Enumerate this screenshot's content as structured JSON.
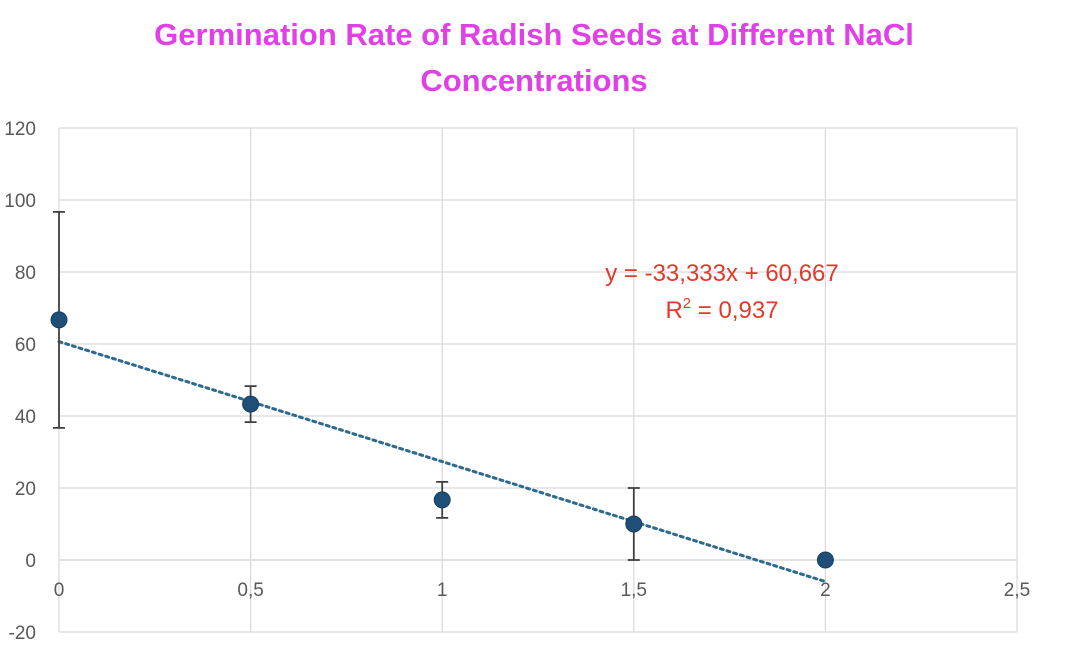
{
  "chart_data": {
    "type": "scatter",
    "title_lines": [
      "Germination Rate of Radish Seeds at Different NaCl",
      "Concentrations"
    ],
    "xlim": [
      0,
      2.5
    ],
    "ylim": [
      -20,
      120
    ],
    "x_ticks": [
      0,
      0.5,
      1,
      1.5,
      2,
      2.5
    ],
    "x_tick_labels": [
      "0",
      "0,5",
      "1",
      "1,5",
      "2",
      "2,5"
    ],
    "y_ticks": [
      -20,
      0,
      20,
      40,
      60,
      80,
      100,
      120
    ],
    "y_tick_labels": [
      "-20",
      "0",
      "20",
      "40",
      "60",
      "80",
      "100",
      "120"
    ],
    "grid": true,
    "points": [
      {
        "x": 0,
        "y": 66.7,
        "err_low": 36.7,
        "err_high": 96.7
      },
      {
        "x": 0.5,
        "y": 43.3,
        "err_low": 38.3,
        "err_high": 48.3
      },
      {
        "x": 1,
        "y": 16.7,
        "err_low": 11.7,
        "err_high": 21.7
      },
      {
        "x": 1.5,
        "y": 10,
        "err_low": 0,
        "err_high": 20
      },
      {
        "x": 2,
        "y": 0,
        "err_low": 0,
        "err_high": 0
      }
    ],
    "trendline": {
      "type": "linear",
      "slope": -33.333,
      "intercept": 60.667,
      "x_range": [
        0,
        2
      ],
      "equation_text": "y = -33,333x + 60,667",
      "r2_prefix": "R",
      "r2_exponent": "2",
      "r2_suffix": " = 0,937"
    },
    "colors": {
      "title": "#e040e6",
      "marker": "#1f4e79",
      "trendline": "#2e6a8e",
      "equation": "#e03a2a",
      "grid": "#d9d9d9",
      "axis_text": "#595959",
      "error_bar": "#404040"
    }
  }
}
